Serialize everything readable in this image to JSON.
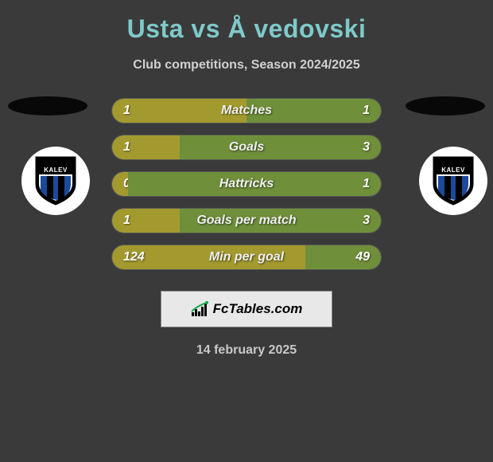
{
  "title": "Usta vs Å vedovski",
  "subtitle": "Club competitions, Season 2024/2025",
  "team_left": {
    "badge_text": "KALEV"
  },
  "team_right": {
    "badge_text": "KALEV"
  },
  "stats": [
    {
      "label": "Matches",
      "left_value": "1",
      "right_value": "1",
      "left_pct": 50,
      "right_pct": 50,
      "left_color": "#a39a2f",
      "right_color": "#6f8f3a"
    },
    {
      "label": "Goals",
      "left_value": "1",
      "right_value": "3",
      "left_pct": 25,
      "right_pct": 75,
      "left_color": "#a39a2f",
      "right_color": "#6f8f3a"
    },
    {
      "label": "Hattricks",
      "left_value": "0",
      "right_value": "1",
      "left_pct": 6,
      "right_pct": 94,
      "left_color": "#a39a2f",
      "right_color": "#6f8f3a"
    },
    {
      "label": "Goals per match",
      "left_value": "1",
      "right_value": "3",
      "left_pct": 25,
      "right_pct": 75,
      "left_color": "#a39a2f",
      "right_color": "#6f8f3a"
    },
    {
      "label": "Min per goal",
      "left_value": "124",
      "right_value": "49",
      "left_pct": 72,
      "right_pct": 28,
      "left_color": "#a39a2f",
      "right_color": "#6f8f3a"
    }
  ],
  "footer_brand": "FcTables.com",
  "date": "14 february 2025",
  "colors": {
    "background": "#3a3a3a",
    "title_color": "#7fc9c9",
    "text_light": "#d0d0d0"
  }
}
